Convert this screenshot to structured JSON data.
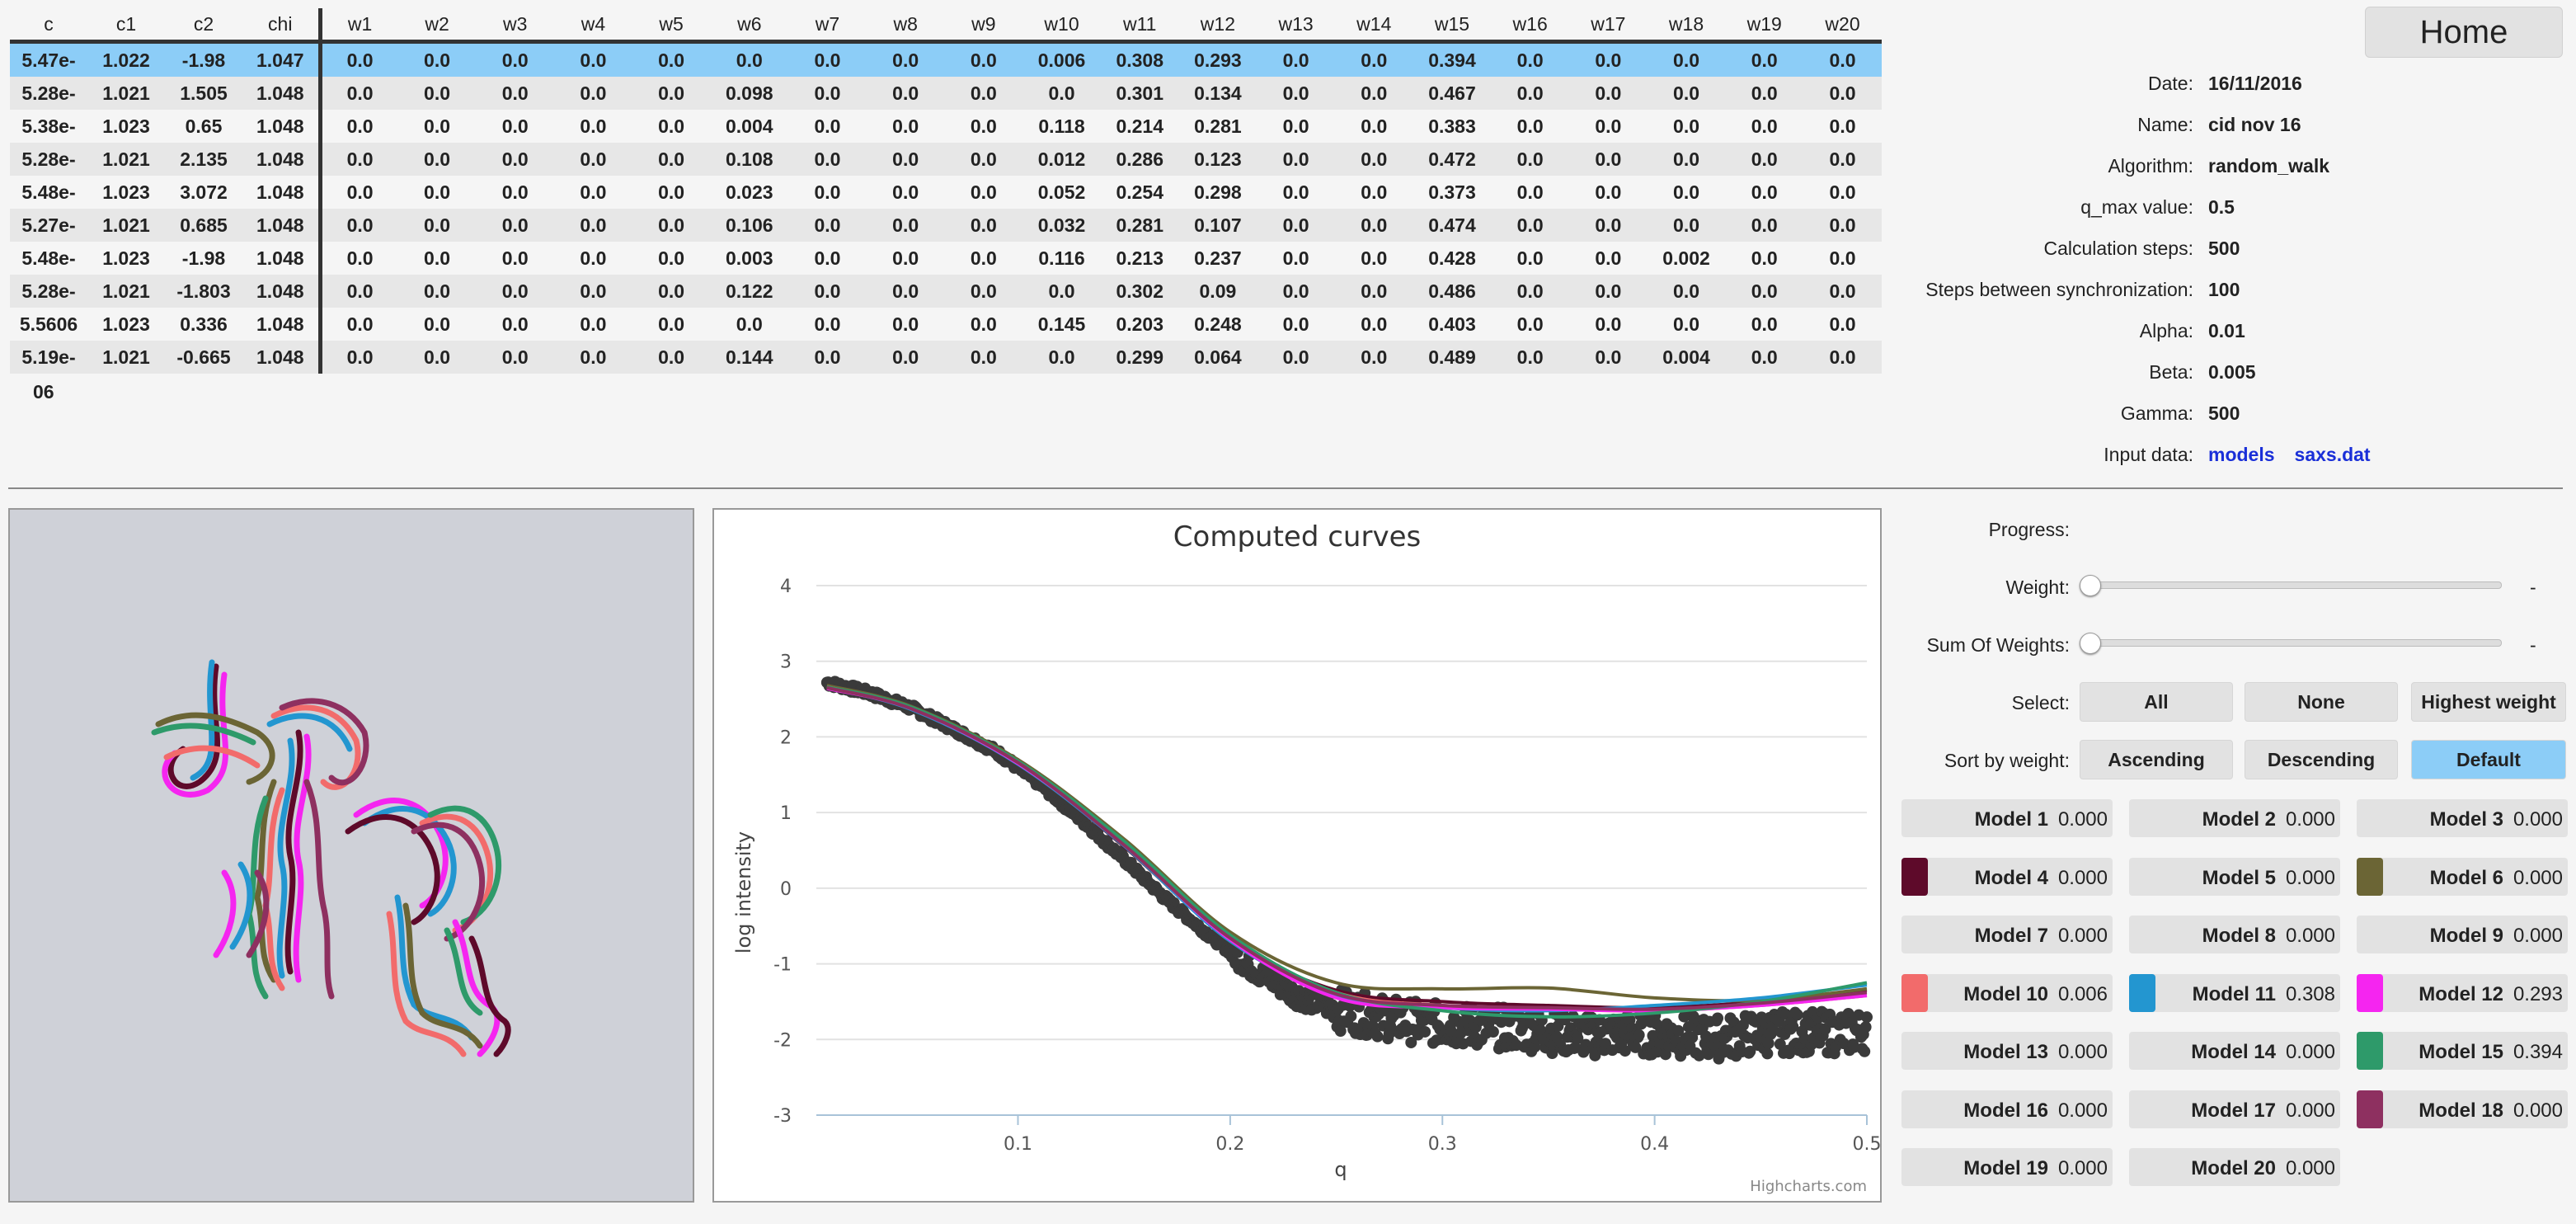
{
  "table": {
    "headers": [
      "c",
      "c1",
      "c2",
      "chi",
      "w1",
      "w2",
      "w3",
      "w4",
      "w5",
      "w6",
      "w7",
      "w8",
      "w9",
      "w10",
      "w11",
      "w12",
      "w13",
      "w14",
      "w15",
      "w16",
      "w17",
      "w18",
      "w19",
      "w20"
    ],
    "rows": [
      [
        "5.47e-",
        "1.022",
        "-1.98",
        "1.047",
        "0.0",
        "0.0",
        "0.0",
        "0.0",
        "0.0",
        "0.0",
        "0.0",
        "0.0",
        "0.0",
        "0.006",
        "0.308",
        "0.293",
        "0.0",
        "0.0",
        "0.394",
        "0.0",
        "0.0",
        "0.0",
        "0.0",
        "0.0"
      ],
      [
        "5.28e-",
        "1.021",
        "1.505",
        "1.048",
        "0.0",
        "0.0",
        "0.0",
        "0.0",
        "0.0",
        "0.098",
        "0.0",
        "0.0",
        "0.0",
        "0.0",
        "0.301",
        "0.134",
        "0.0",
        "0.0",
        "0.467",
        "0.0",
        "0.0",
        "0.0",
        "0.0",
        "0.0"
      ],
      [
        "5.38e-",
        "1.023",
        "0.65",
        "1.048",
        "0.0",
        "0.0",
        "0.0",
        "0.0",
        "0.0",
        "0.004",
        "0.0",
        "0.0",
        "0.0",
        "0.118",
        "0.214",
        "0.281",
        "0.0",
        "0.0",
        "0.383",
        "0.0",
        "0.0",
        "0.0",
        "0.0",
        "0.0"
      ],
      [
        "5.28e-",
        "1.021",
        "2.135",
        "1.048",
        "0.0",
        "0.0",
        "0.0",
        "0.0",
        "0.0",
        "0.108",
        "0.0",
        "0.0",
        "0.0",
        "0.012",
        "0.286",
        "0.123",
        "0.0",
        "0.0",
        "0.472",
        "0.0",
        "0.0",
        "0.0",
        "0.0",
        "0.0"
      ],
      [
        "5.48e-",
        "1.023",
        "3.072",
        "1.048",
        "0.0",
        "0.0",
        "0.0",
        "0.0",
        "0.0",
        "0.023",
        "0.0",
        "0.0",
        "0.0",
        "0.052",
        "0.254",
        "0.298",
        "0.0",
        "0.0",
        "0.373",
        "0.0",
        "0.0",
        "0.0",
        "0.0",
        "0.0"
      ],
      [
        "5.27e-",
        "1.021",
        "0.685",
        "1.048",
        "0.0",
        "0.0",
        "0.0",
        "0.0",
        "0.0",
        "0.106",
        "0.0",
        "0.0",
        "0.0",
        "0.032",
        "0.281",
        "0.107",
        "0.0",
        "0.0",
        "0.474",
        "0.0",
        "0.0",
        "0.0",
        "0.0",
        "0.0"
      ],
      [
        "5.48e-",
        "1.023",
        "-1.98",
        "1.048",
        "0.0",
        "0.0",
        "0.0",
        "0.0",
        "0.0",
        "0.003",
        "0.0",
        "0.0",
        "0.0",
        "0.116",
        "0.213",
        "0.237",
        "0.0",
        "0.0",
        "0.428",
        "0.0",
        "0.0",
        "0.002",
        "0.0",
        "0.0"
      ],
      [
        "5.28e-",
        "1.021",
        "-1.803",
        "1.048",
        "0.0",
        "0.0",
        "0.0",
        "0.0",
        "0.0",
        "0.122",
        "0.0",
        "0.0",
        "0.0",
        "0.0",
        "0.302",
        "0.09",
        "0.0",
        "0.0",
        "0.486",
        "0.0",
        "0.0",
        "0.0",
        "0.0",
        "0.0"
      ],
      [
        "5.5606",
        "1.023",
        "0.336",
        "1.048",
        "0.0",
        "0.0",
        "0.0",
        "0.0",
        "0.0",
        "0.0",
        "0.0",
        "0.0",
        "0.0",
        "0.145",
        "0.203",
        "0.248",
        "0.0",
        "0.0",
        "0.403",
        "0.0",
        "0.0",
        "0.0",
        "0.0",
        "0.0"
      ],
      [
        "5.19e-",
        "1.021",
        "-0.665",
        "1.048",
        "0.0",
        "0.0",
        "0.0",
        "0.0",
        "0.0",
        "0.144",
        "0.0",
        "0.0",
        "0.0",
        "0.0",
        "0.299",
        "0.064",
        "0.0",
        "0.0",
        "0.489",
        "0.0",
        "0.0",
        "0.004",
        "0.0",
        "0.0"
      ]
    ],
    "overflow_text": "06",
    "selected_row": 0
  },
  "home": {
    "label": "Home"
  },
  "info": [
    {
      "label": "Date:",
      "value": "16/11/2016"
    },
    {
      "label": "Name:",
      "value": "cid nov 16"
    },
    {
      "label": "Algorithm:",
      "value": "random_walk"
    },
    {
      "label": "q_max value:",
      "value": "0.5"
    },
    {
      "label": "Calculation steps:",
      "value": "500"
    },
    {
      "label": "Steps between synchronization:",
      "value": "100"
    },
    {
      "label": "Alpha:",
      "value": "0.01"
    },
    {
      "label": "Beta:",
      "value": "0.005"
    },
    {
      "label": "Gamma:",
      "value": "500"
    }
  ],
  "input_data": {
    "label": "Input data:",
    "links": [
      "models",
      "saxs.dat"
    ]
  },
  "controls": {
    "progress_label": "Progress:",
    "weight_label": "Weight:",
    "weight_value": "-",
    "sum_label": "Sum Of Weights:",
    "sum_value": "-",
    "select_label": "Select:",
    "select_buttons": [
      "All",
      "None",
      "Highest weight"
    ],
    "sort_label": "Sort by weight:",
    "sort_buttons": [
      "Ascending",
      "Descending",
      "Default"
    ],
    "sort_active": 2
  },
  "models": [
    {
      "name": "Model 1",
      "weight": "0.000",
      "color": ""
    },
    {
      "name": "Model 2",
      "weight": "0.000",
      "color": ""
    },
    {
      "name": "Model 3",
      "weight": "0.000",
      "color": ""
    },
    {
      "name": "Model 4",
      "weight": "0.000",
      "color": "#5e0a2a"
    },
    {
      "name": "Model 5",
      "weight": "0.000",
      "color": ""
    },
    {
      "name": "Model 6",
      "weight": "0.000",
      "color": "#6b6535"
    },
    {
      "name": "Model 7",
      "weight": "0.000",
      "color": ""
    },
    {
      "name": "Model 8",
      "weight": "0.000",
      "color": ""
    },
    {
      "name": "Model 9",
      "weight": "0.000",
      "color": ""
    },
    {
      "name": "Model 10",
      "weight": "0.006",
      "color": "#f26b6b"
    },
    {
      "name": "Model 11",
      "weight": "0.308",
      "color": "#2396d0"
    },
    {
      "name": "Model 12",
      "weight": "0.293",
      "color": "#f525f0"
    },
    {
      "name": "Model 13",
      "weight": "0.000",
      "color": ""
    },
    {
      "name": "Model 14",
      "weight": "0.000",
      "color": ""
    },
    {
      "name": "Model 15",
      "weight": "0.394",
      "color": "#2e9a6a"
    },
    {
      "name": "Model 16",
      "weight": "0.000",
      "color": ""
    },
    {
      "name": "Model 17",
      "weight": "0.000",
      "color": ""
    },
    {
      "name": "Model 18",
      "weight": "0.000",
      "color": "#8e3060"
    },
    {
      "name": "Model 19",
      "weight": "0.000",
      "color": ""
    },
    {
      "name": "Model 20",
      "weight": "0.000",
      "color": ""
    }
  ],
  "chart_data": {
    "type": "line",
    "title": "Computed curves",
    "xlabel": "q",
    "ylabel": "log intensity",
    "xlim": [
      0.005,
      0.5
    ],
    "ylim": [
      -3,
      4
    ],
    "xticks": [
      "0.1",
      "0.2",
      "0.3",
      "0.4",
      "0.5"
    ],
    "yticks": [
      "4",
      "3",
      "2",
      "1",
      "0",
      "-1",
      "-2",
      "-3"
    ],
    "grid": true,
    "credit": "Highcharts.com",
    "experimental": {
      "color": "#3a3a3a",
      "x": [
        0.01,
        0.03,
        0.05,
        0.07,
        0.09,
        0.11,
        0.13,
        0.15,
        0.17,
        0.19,
        0.21,
        0.23,
        0.25,
        0.27,
        0.29,
        0.31,
        0.33,
        0.35,
        0.37,
        0.39,
        0.41,
        0.43,
        0.45,
        0.47,
        0.49,
        0.5
      ],
      "y": [
        2.72,
        2.58,
        2.38,
        2.1,
        1.8,
        1.38,
        0.9,
        0.38,
        -0.15,
        -0.62,
        -1.05,
        -1.4,
        -1.6,
        -1.7,
        -1.78,
        -1.82,
        -1.85,
        -1.9,
        -1.95,
        -1.92,
        -1.95,
        -1.98,
        -1.92,
        -1.9,
        -1.92,
        -1.88
      ]
    },
    "series": [
      {
        "color": "#5e0a2a",
        "x": [
          0.01,
          0.05,
          0.1,
          0.15,
          0.2,
          0.25,
          0.3,
          0.35,
          0.4,
          0.45,
          0.5
        ],
        "y": [
          2.65,
          2.38,
          1.65,
          0.55,
          -0.68,
          -1.35,
          -1.5,
          -1.55,
          -1.58,
          -1.5,
          -1.35
        ]
      },
      {
        "color": "#6b6535",
        "x": [
          0.01,
          0.05,
          0.1,
          0.15,
          0.2,
          0.25,
          0.3,
          0.35,
          0.4,
          0.45,
          0.5
        ],
        "y": [
          2.68,
          2.4,
          1.7,
          0.65,
          -0.58,
          -1.25,
          -1.33,
          -1.32,
          -1.45,
          -1.48,
          -1.33
        ]
      },
      {
        "color": "#f26b6b",
        "x": [
          0.01,
          0.05,
          0.1,
          0.15,
          0.2,
          0.25,
          0.3,
          0.35,
          0.4,
          0.45,
          0.5
        ],
        "y": [
          2.66,
          2.38,
          1.66,
          0.58,
          -0.65,
          -1.38,
          -1.55,
          -1.6,
          -1.62,
          -1.55,
          -1.42
        ]
      },
      {
        "color": "#2396d0",
        "x": [
          0.01,
          0.05,
          0.1,
          0.15,
          0.2,
          0.25,
          0.3,
          0.35,
          0.4,
          0.45,
          0.5
        ],
        "y": [
          2.65,
          2.36,
          1.64,
          0.56,
          -0.7,
          -1.42,
          -1.58,
          -1.62,
          -1.55,
          -1.45,
          -1.28
        ]
      },
      {
        "color": "#f525f0",
        "x": [
          0.01,
          0.05,
          0.1,
          0.15,
          0.2,
          0.25,
          0.3,
          0.35,
          0.4,
          0.45,
          0.5
        ],
        "y": [
          2.64,
          2.37,
          1.65,
          0.58,
          -0.68,
          -1.45,
          -1.58,
          -1.6,
          -1.62,
          -1.55,
          -1.42
        ]
      },
      {
        "color": "#2e9a6a",
        "x": [
          0.01,
          0.05,
          0.1,
          0.15,
          0.2,
          0.25,
          0.3,
          0.35,
          0.4,
          0.45,
          0.5
        ],
        "y": [
          2.66,
          2.39,
          1.68,
          0.62,
          -0.62,
          -1.38,
          -1.62,
          -1.7,
          -1.65,
          -1.5,
          -1.25
        ]
      },
      {
        "color": "#8e3060",
        "x": [
          0.01,
          0.05,
          0.1,
          0.15,
          0.2,
          0.25,
          0.3,
          0.35,
          0.4,
          0.45,
          0.5
        ],
        "y": [
          2.65,
          2.37,
          1.66,
          0.57,
          -0.66,
          -1.4,
          -1.55,
          -1.58,
          -1.6,
          -1.52,
          -1.38
        ]
      }
    ]
  }
}
